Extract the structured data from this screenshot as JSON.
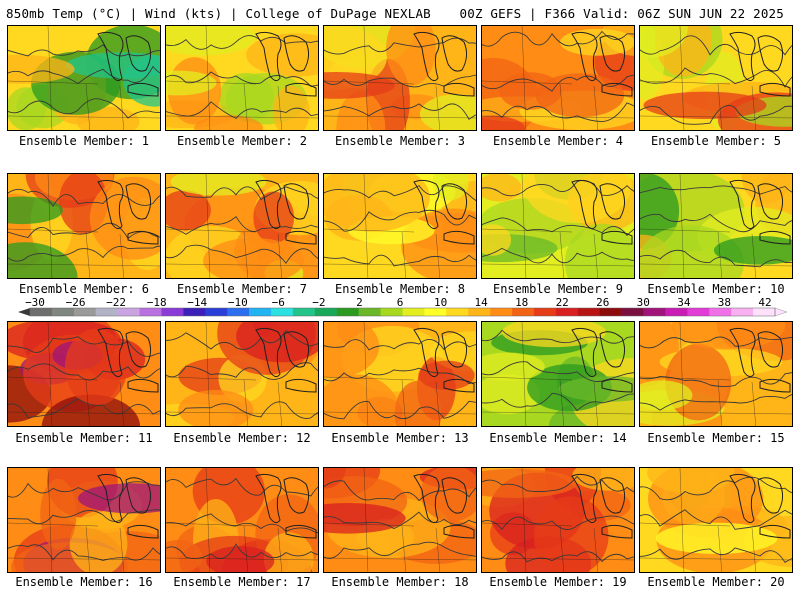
{
  "header": {
    "left_title": "850mb Temp (°C) | Wind (kts) | College of DuPage NEXLAB",
    "right_title": "00Z GEFS | F366 Valid: 06Z SUN JUN 22 2025"
  },
  "colorbar": {
    "labels": [
      "−30",
      "−26",
      "−22",
      "−18",
      "−14",
      "−10",
      "−6",
      "−2",
      "2",
      "6",
      "10",
      "14",
      "18",
      "22",
      "26",
      "30",
      "34",
      "38",
      "42"
    ],
    "colors": [
      "#6e6e6e",
      "#7f857f",
      "#9a9a9a",
      "#b3b3c8",
      "#c9a4e0",
      "#b870e0",
      "#8a3ad6",
      "#3b1fb8",
      "#2a3fd8",
      "#2b6ff0",
      "#22b4f2",
      "#2ae0e0",
      "#22c48a",
      "#1aa85a",
      "#2a9a20",
      "#6ab828",
      "#a8d820",
      "#e2ee20",
      "#ffff28",
      "#ffd820",
      "#ffb418",
      "#ff8c14",
      "#f26414",
      "#e63c18",
      "#d82020",
      "#b81414",
      "#8c0c0c",
      "#7a1040",
      "#a0147a",
      "#c81cb4",
      "#e23cd8",
      "#f070e8",
      "#f8b0f0",
      "#fde0fa"
    ],
    "accent_low": "#3a3a3a",
    "accent_high": "#ffe0ff"
  },
  "panels": [
    {
      "label": "Ensemble Member: 1",
      "palette": [
        "#ffd820",
        "#ffb418",
        "#a8d820",
        "#2a9a20",
        "#22c48a"
      ]
    },
    {
      "label": "Ensemble Member: 2",
      "palette": [
        "#ffd820",
        "#ffb418",
        "#e2ee20",
        "#a8d820",
        "#ff8c14"
      ]
    },
    {
      "label": "Ensemble Member: 3",
      "palette": [
        "#ffb418",
        "#ff8c14",
        "#ffd820",
        "#e2ee20",
        "#e63c18"
      ]
    },
    {
      "label": "Ensemble Member: 4",
      "palette": [
        "#ff8c14",
        "#f26414",
        "#ffb418",
        "#e63c18",
        "#ffd820"
      ]
    },
    {
      "label": "Ensemble Member: 5",
      "palette": [
        "#ffd820",
        "#e2ee20",
        "#a8d820",
        "#ffb418",
        "#e63c18"
      ]
    },
    {
      "label": "Ensemble Member: 6",
      "palette": [
        "#ffb418",
        "#ff8c14",
        "#ffd820",
        "#e63c18",
        "#2a9a20"
      ]
    },
    {
      "label": "Ensemble Member: 7",
      "palette": [
        "#ffb418",
        "#ff8c14",
        "#ffd820",
        "#e63c18",
        "#e2ee20"
      ]
    },
    {
      "label": "Ensemble Member: 8",
      "palette": [
        "#ffd820",
        "#ffb418",
        "#e2ee20",
        "#ff8c14",
        "#ffff28"
      ]
    },
    {
      "label": "Ensemble Member: 9",
      "palette": [
        "#e2ee20",
        "#ffd820",
        "#a8d820",
        "#6ab828",
        "#ffb418"
      ]
    },
    {
      "label": "Ensemble Member: 10",
      "palette": [
        "#ffd820",
        "#ffb418",
        "#e2ee20",
        "#a8d820",
        "#2a9a20"
      ]
    },
    {
      "label": "Ensemble Member: 11",
      "palette": [
        "#ff8c14",
        "#e63c18",
        "#d82020",
        "#8c0c0c",
        "#a0147a"
      ]
    },
    {
      "label": "Ensemble Member: 12",
      "palette": [
        "#ffb418",
        "#ff8c14",
        "#e63c18",
        "#d82020",
        "#ffd820"
      ]
    },
    {
      "label": "Ensemble Member: 13",
      "palette": [
        "#ffb418",
        "#ff8c14",
        "#f26414",
        "#ffd820",
        "#e63c18"
      ]
    },
    {
      "label": "Ensemble Member: 14",
      "palette": [
        "#a8d820",
        "#6ab828",
        "#2a9a20",
        "#e2ee20",
        "#ffd820"
      ]
    },
    {
      "label": "Ensemble Member: 15",
      "palette": [
        "#ffb418",
        "#ff8c14",
        "#ffd820",
        "#f26414",
        "#e2ee20"
      ]
    },
    {
      "label": "Ensemble Member: 16",
      "palette": [
        "#ff8c14",
        "#f26414",
        "#e63c18",
        "#ffb418",
        "#a0147a"
      ]
    },
    {
      "label": "Ensemble Member: 17",
      "palette": [
        "#ff8c14",
        "#f26414",
        "#e63c18",
        "#ffb418",
        "#d82020"
      ]
    },
    {
      "label": "Ensemble Member: 18",
      "palette": [
        "#ff8c14",
        "#f26414",
        "#ffb418",
        "#e63c18",
        "#d82020"
      ]
    },
    {
      "label": "Ensemble Member: 19",
      "palette": [
        "#ff8c14",
        "#e63c18",
        "#d82020",
        "#f26414",
        "#ffb418"
      ]
    },
    {
      "label": "Ensemble Member: 20",
      "palette": [
        "#ffd820",
        "#ffb418",
        "#e2ee20",
        "#ff8c14",
        "#ffff28"
      ]
    }
  ]
}
